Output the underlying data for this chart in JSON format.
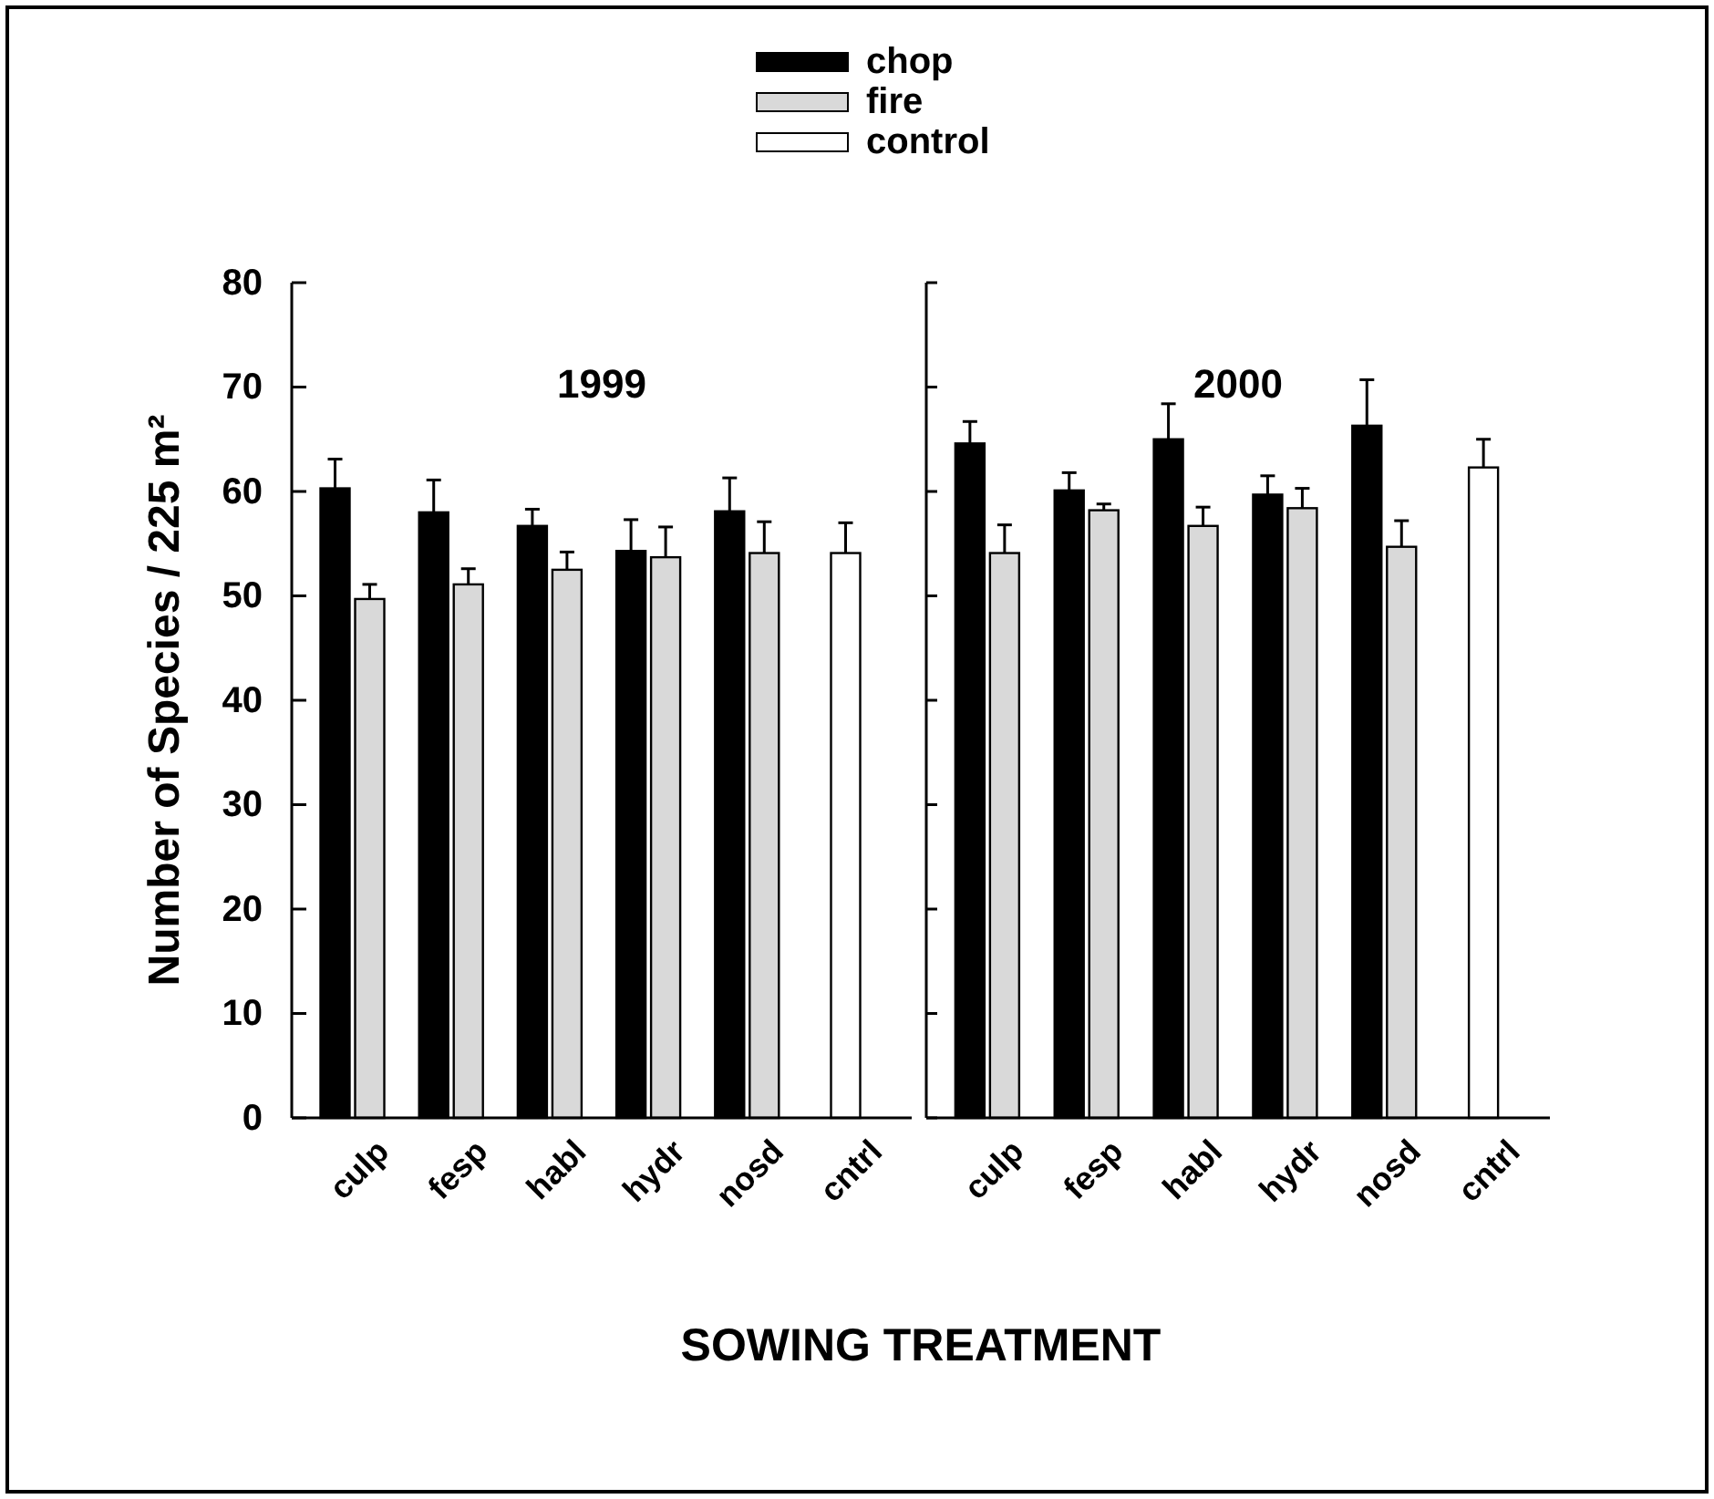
{
  "chart_data": [
    {
      "type": "bar",
      "title": "1999",
      "xlabel": "SOWING TREATMENT",
      "ylabel": "Number of Species / 225 m²",
      "categories": [
        "culp",
        "fesp",
        "habl",
        "hydr",
        "nosd",
        "cntrl"
      ],
      "ylim": [
        0,
        80
      ],
      "yticks": [
        0,
        10,
        20,
        30,
        40,
        50,
        60,
        70,
        80
      ],
      "legend": "top",
      "grid": false,
      "series": [
        {
          "name": "chop",
          "color": "#000000",
          "values": [
            60.3,
            58.0,
            56.7,
            54.3,
            58.1,
            null
          ],
          "errors": [
            [
              60.3,
              63.1
            ],
            [
              58.0,
              61.1
            ],
            [
              56.7,
              58.3
            ],
            [
              54.3,
              57.3
            ],
            [
              58.1,
              61.3
            ],
            null
          ]
        },
        {
          "name": "fire",
          "color": "#d9d9d9",
          "values": [
            49.7,
            51.1,
            52.5,
            53.7,
            54.1,
            null
          ],
          "errors": [
            [
              49.7,
              51.1
            ],
            [
              51.1,
              52.6
            ],
            [
              52.5,
              54.2
            ],
            [
              53.7,
              56.6
            ],
            [
              54.1,
              57.1
            ],
            null
          ]
        },
        {
          "name": "control",
          "color": "#ffffff",
          "values": [
            null,
            null,
            null,
            null,
            null,
            54.1
          ],
          "errors": [
            null,
            null,
            null,
            null,
            null,
            [
              54.1,
              57.0
            ]
          ]
        }
      ]
    },
    {
      "type": "bar",
      "title": "2000",
      "categories": [
        "culp",
        "fesp",
        "habl",
        "hydr",
        "nosd",
        "cntrl"
      ],
      "ylim": [
        0,
        80
      ],
      "yticks": [
        0,
        10,
        20,
        30,
        40,
        50,
        60,
        70,
        80
      ],
      "tick_labels": "x",
      "grid": false,
      "series": [
        {
          "color": "#000000",
          "values": [
            64.6,
            60.1,
            65.0,
            59.7,
            66.3,
            null
          ],
          "errors": [
            [
              64.6,
              66.7
            ],
            [
              60.1,
              61.8
            ],
            [
              65.0,
              68.4
            ],
            [
              59.7,
              61.5
            ],
            [
              66.3,
              70.7
            ],
            null
          ]
        },
        {
          "color": "#d9d9d9",
          "values": [
            54.1,
            58.2,
            56.7,
            58.4,
            54.7,
            null
          ],
          "errors": [
            [
              54.1,
              56.8
            ],
            [
              58.2,
              58.8
            ],
            [
              56.7,
              58.5
            ],
            [
              58.4,
              60.3
            ],
            [
              54.7,
              57.2
            ],
            null
          ]
        },
        {
          "color": "#ffffff",
          "values": [
            null,
            null,
            null,
            null,
            null,
            62.3
          ],
          "errors": [
            null,
            null,
            null,
            null,
            null,
            [
              62.3,
              65.0
            ]
          ]
        }
      ]
    }
  ]
}
